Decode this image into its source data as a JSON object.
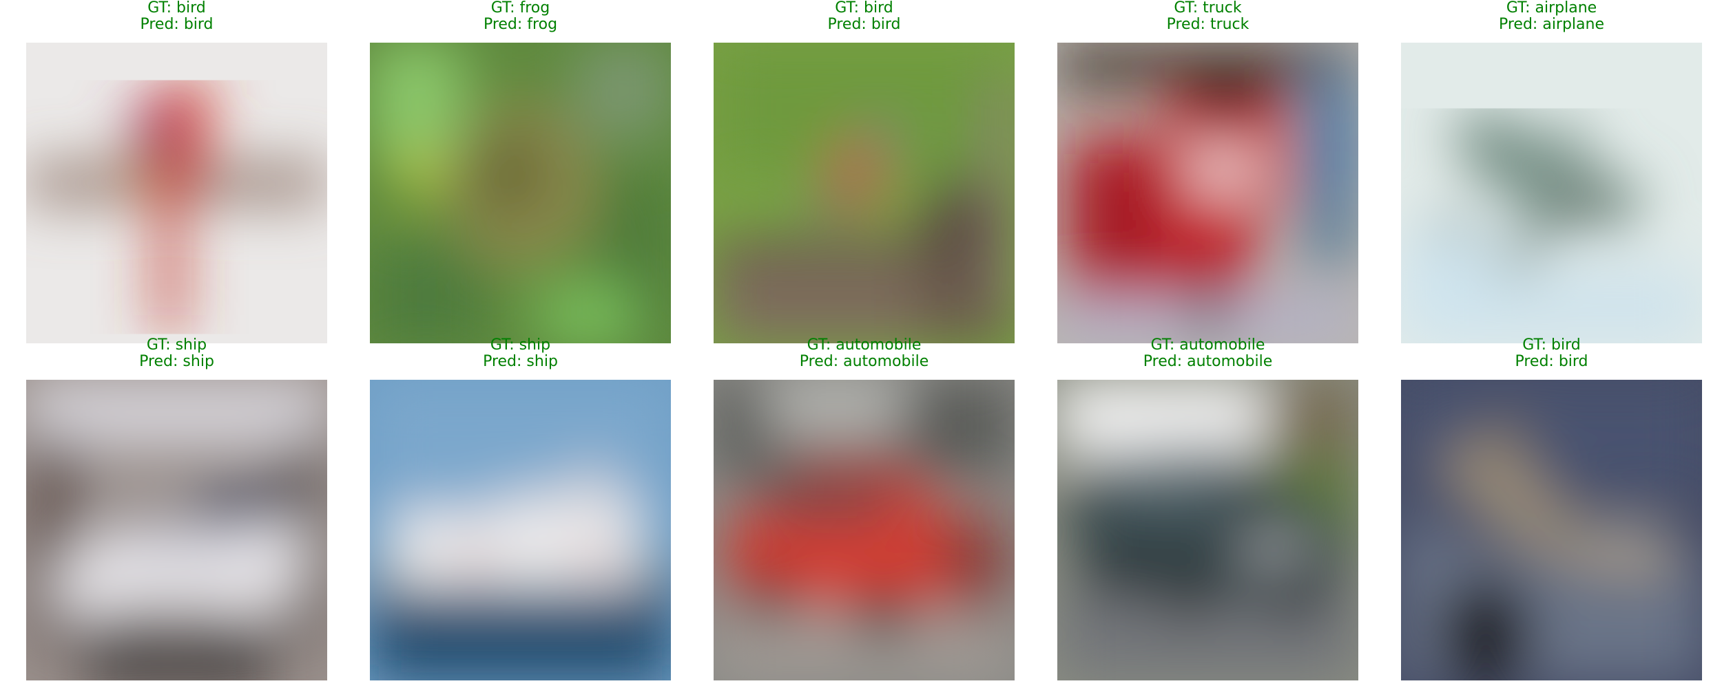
{
  "colors": {
    "caption": "#008000"
  },
  "samples": [
    {
      "gt": "GT: bird",
      "pred": "Pred: bird",
      "subject": "parrot-on-perch"
    },
    {
      "gt": "GT: frog",
      "pred": "Pred: frog",
      "subject": "frog-in-foliage"
    },
    {
      "gt": "GT: bird",
      "pred": "Pred: bird",
      "subject": "small-bird-on-stump"
    },
    {
      "gt": "GT: truck",
      "pred": "Pred: truck",
      "subject": "red-truck"
    },
    {
      "gt": "GT: airplane",
      "pred": "Pred: airplane",
      "subject": "airplane-in-sky"
    },
    {
      "gt": "GT: ship",
      "pred": "Pred: ship",
      "subject": "white-boat"
    },
    {
      "gt": "GT: ship",
      "pred": "Pred: ship",
      "subject": "white-ship-on-sea"
    },
    {
      "gt": "GT: automobile",
      "pred": "Pred: automobile",
      "subject": "red-car"
    },
    {
      "gt": "GT: automobile",
      "pred": "Pred: automobile",
      "subject": "dark-car"
    },
    {
      "gt": "GT: bird",
      "pred": "Pred: bird",
      "subject": "bird-over-water"
    }
  ]
}
